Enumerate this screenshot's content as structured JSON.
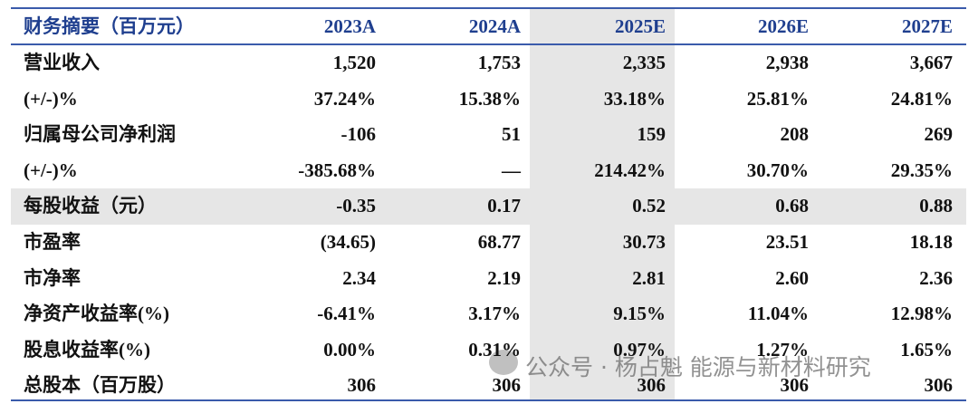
{
  "table": {
    "header": [
      "财务摘要（百万元）",
      "2023A",
      "2024A",
      "2025E",
      "2026E",
      "2027E"
    ],
    "rows": [
      [
        "营业收入",
        "1,520",
        "1,753",
        "2,335",
        "2,938",
        "3,667"
      ],
      [
        "(+/-)%",
        "37.24%",
        "15.38%",
        "33.18%",
        "25.81%",
        "24.81%"
      ],
      [
        "归属母公司净利润",
        "-106",
        "51",
        "159",
        "208",
        "269"
      ],
      [
        "(+/-)%",
        "-385.68%",
        "—",
        "214.42%",
        "30.70%",
        "29.35%"
      ],
      [
        "每股收益（元）",
        "-0.35",
        "0.17",
        "0.52",
        "0.68",
        "0.88"
      ],
      [
        "市盈率",
        "(34.65)",
        "68.77",
        "30.73",
        "23.51",
        "18.18"
      ],
      [
        "市净率",
        "2.34",
        "2.19",
        "2.81",
        "2.60",
        "2.36"
      ],
      [
        "净资产收益率(%)",
        "-6.41%",
        "3.17%",
        "9.15%",
        "11.04%",
        "12.98%"
      ],
      [
        "股息收益率(%)",
        "0.00%",
        "0.31%",
        "0.97%",
        "1.27%",
        "1.65%"
      ],
      [
        "总股本（百万股）",
        "306",
        "306",
        "306",
        "306",
        "306"
      ]
    ]
  },
  "watermark": "公众号 · 杨占魁 能源与新材料研究"
}
